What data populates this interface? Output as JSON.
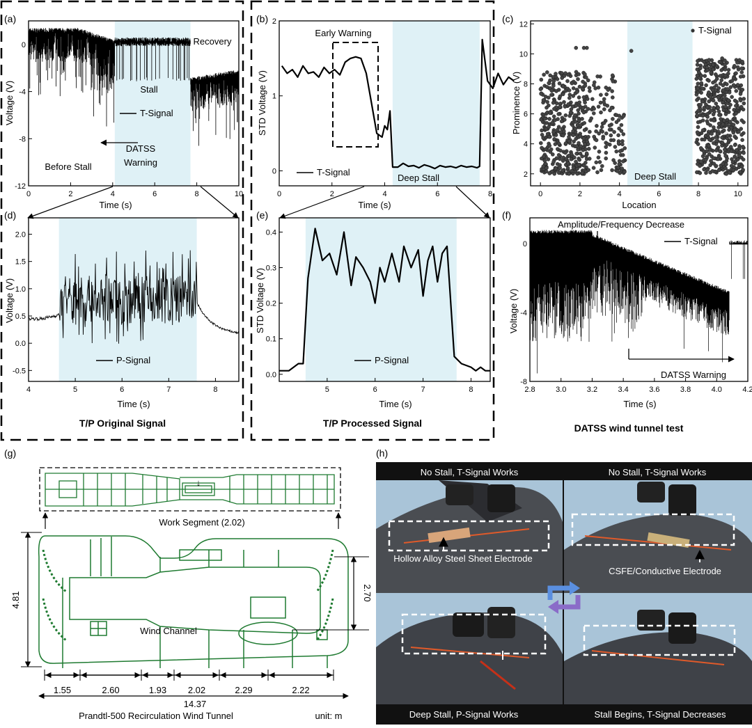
{
  "panels": {
    "a": {
      "letter": "(a)",
      "ylabel": "Voltage (V)",
      "xlabel": "Time (s)",
      "labels": {
        "recovery": "Recovery",
        "stall": "Stall",
        "legend": "T-Signal",
        "before": "Before Stall",
        "warning1": "DATSS",
        "warning2": "Warning"
      }
    },
    "b": {
      "letter": "(b)",
      "ylabel": "STD Voltage (V)",
      "xlabel": "Time (s)",
      "labels": {
        "early": "Early Warning",
        "legend": "T-Signal",
        "deep": "Deep Stall"
      }
    },
    "c": {
      "letter": "(c)",
      "ylabel": "Prominence (V)",
      "xlabel": "Location",
      "labels": {
        "legend": "T-Signal",
        "deep": "Deep Stall"
      }
    },
    "d": {
      "letter": "(d)",
      "ylabel": "Voltage (V)",
      "xlabel": "Time (s)",
      "labels": {
        "legend": "P-Signal"
      }
    },
    "e": {
      "letter": "(e)",
      "ylabel": "STD Voltage (V)",
      "xlabel": "Time (s)",
      "labels": {
        "legend": "P-Signal"
      }
    },
    "f": {
      "letter": "(f)",
      "ylabel": "Voltage (V)",
      "xlabel": "Time (s)",
      "labels": {
        "amp": "Amplitude/Frequency Decrease",
        "legend": "T-Signal",
        "warning": "DATSS Warning"
      }
    },
    "g": {
      "letter": "(g)",
      "work": "Work Segment (2.02)",
      "channel": "Wind Channel",
      "height": "4.81",
      "inner": "2.70",
      "segments": [
        "1.55",
        "2.60",
        "1.93",
        "2.02",
        "2.29",
        "2.22"
      ],
      "total": "14.37",
      "title": "Prandtl-500 Recirculation Wind Tunnel",
      "unit": "unit: m"
    },
    "h": {
      "letter": "(h)",
      "captions": [
        "No Stall, T-Signal Works",
        "No Stall, T-Signal Works",
        "Deep Stall, P-Signal Works",
        "Stall Begins, T-Signal Decreases"
      ],
      "hollow": "Hollow Alloy Steel Sheet Electrode",
      "csfe": "CSFE/Conductive Electrode"
    }
  },
  "group_titles": {
    "original": "T/P Original Signal",
    "processed": "T/P Processed Signal",
    "datss": "DATSS wind tunnel test"
  },
  "colors": {
    "shade": "#dff1f6",
    "tunnel": "#1e7a30",
    "arrow_a": "#4a80d8",
    "arrow_b": "#8d6cc8"
  },
  "chart_data": [
    {
      "panel": "a",
      "type": "line",
      "xlim": [
        0,
        10
      ],
      "ylim": [
        -12,
        2
      ],
      "xticks": [
        0,
        2,
        4,
        6,
        8,
        10
      ],
      "yticks": [
        0,
        -4,
        -8,
        -12
      ],
      "shade": [
        4.1,
        7.7
      ],
      "series": [
        {
          "name": "T-Signal"
        }
      ]
    },
    {
      "panel": "b",
      "type": "line",
      "xlim": [
        0,
        8
      ],
      "ylim": [
        -0.2,
        2
      ],
      "xticks": [
        0,
        2,
        4,
        6,
        8
      ],
      "yticks": [
        0,
        1,
        2
      ],
      "shade": [
        4.3,
        7.6
      ],
      "series": [
        {
          "name": "T-Signal",
          "x": [
            0.1,
            0.3,
            0.5,
            0.7,
            0.9,
            1.1,
            1.3,
            1.5,
            1.7,
            1.9,
            2.1,
            2.3,
            2.5,
            2.7,
            2.9,
            3.1,
            3.3,
            3.5,
            3.7,
            3.9,
            4.0,
            4.1,
            4.2,
            4.3,
            4.5,
            4.7,
            4.9,
            5.1,
            5.3,
            5.5,
            5.7,
            5.9,
            6.1,
            6.3,
            6.5,
            6.7,
            6.9,
            7.1,
            7.3,
            7.5,
            7.6,
            7.7,
            7.9,
            8.1,
            8.3,
            8.5,
            8.7,
            8.9
          ],
          "y": [
            1.4,
            1.3,
            1.35,
            1.25,
            1.4,
            1.3,
            1.32,
            1.25,
            1.38,
            1.3,
            1.35,
            1.28,
            1.45,
            1.5,
            1.52,
            1.5,
            1.3,
            0.9,
            0.5,
            0.45,
            0.6,
            0.55,
            0.8,
            0.05,
            0.05,
            0.1,
            0.06,
            0.07,
            0.04,
            0.08,
            0.06,
            0.03,
            0.07,
            0.05,
            0.06,
            0.04,
            0.07,
            0.05,
            0.06,
            0.04,
            0.06,
            1.75,
            1.2,
            1.1,
            1.3,
            1.15,
            1.25,
            1.2
          ]
        }
      ]
    },
    {
      "panel": "c",
      "type": "scatter",
      "xlim": [
        -0.5,
        10.5
      ],
      "ylim": [
        1.2,
        12.2
      ],
      "xticks": [
        0,
        2,
        4,
        6,
        8,
        10
      ],
      "yticks": [
        2,
        4,
        6,
        8,
        10,
        12
      ],
      "shade": [
        4.4,
        7.7
      ],
      "series": [
        {
          "name": "T-Signal"
        }
      ]
    },
    {
      "panel": "d",
      "type": "line",
      "xlim": [
        4,
        8.5
      ],
      "ylim": [
        -0.7,
        2.3
      ],
      "xticks": [
        4,
        5,
        6,
        7,
        8
      ],
      "yticks": [
        -0.5,
        0.0,
        0.5,
        1.0,
        1.5,
        2.0
      ],
      "shade": [
        4.65,
        7.6
      ],
      "series": [
        {
          "name": "P-Signal"
        }
      ]
    },
    {
      "panel": "e",
      "type": "line",
      "xlim": [
        4,
        8.4
      ],
      "ylim": [
        -0.02,
        0.44
      ],
      "xticks": [
        5,
        6,
        7,
        8
      ],
      "yticks": [
        0.0,
        0.1,
        0.2,
        0.3,
        0.4
      ],
      "shade": [
        4.55,
        7.7
      ],
      "series": [
        {
          "name": "P-Signal",
          "x": [
            4.0,
            4.2,
            4.4,
            4.5,
            4.6,
            4.75,
            4.9,
            5.05,
            5.2,
            5.35,
            5.5,
            5.6,
            5.75,
            5.9,
            6.0,
            6.1,
            6.2,
            6.35,
            6.5,
            6.6,
            6.75,
            6.9,
            7.0,
            7.1,
            7.2,
            7.3,
            7.4,
            7.5,
            7.65,
            7.8,
            8.0,
            8.1,
            8.2,
            8.3,
            8.4
          ],
          "y": [
            0.01,
            0.01,
            0.03,
            0.03,
            0.27,
            0.41,
            0.32,
            0.34,
            0.28,
            0.4,
            0.25,
            0.33,
            0.3,
            0.26,
            0.2,
            0.3,
            0.26,
            0.34,
            0.26,
            0.36,
            0.3,
            0.35,
            0.22,
            0.32,
            0.36,
            0.26,
            0.34,
            0.36,
            0.05,
            0.03,
            0.02,
            0.01,
            0.02,
            0.01,
            0.01
          ]
        }
      ]
    },
    {
      "panel": "f",
      "type": "line",
      "xlim": [
        2.8,
        4.2
      ],
      "ylim": [
        -8,
        1.5
      ],
      "xticks": [
        2.8,
        3.0,
        3.2,
        3.4,
        3.6,
        3.8,
        4.0,
        4.2
      ],
      "yticks": [
        0,
        -4,
        -8
      ],
      "series": [
        {
          "name": "T-Signal"
        }
      ]
    }
  ]
}
